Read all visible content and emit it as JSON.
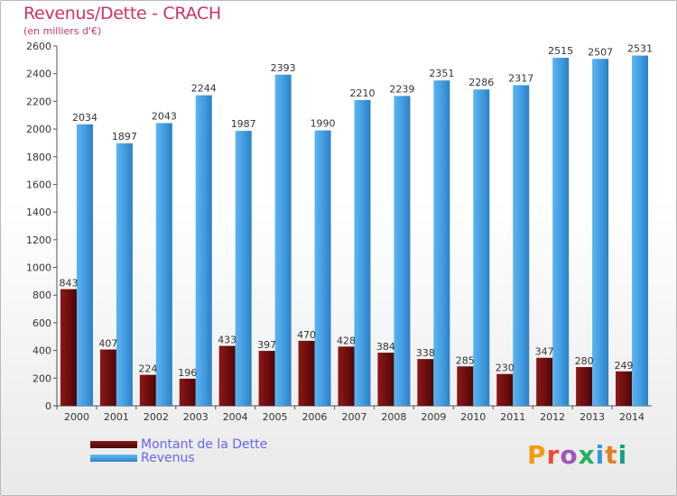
{
  "title": "Revenus/Dette - CRACH",
  "subtitle": "(en milliers d'€)",
  "logo": {
    "text": "Proxiti",
    "colors": [
      "#f39c12",
      "#e74c3c",
      "#9b59b6",
      "#27ae60",
      "#3498db",
      "#e67e22",
      "#16a085"
    ]
  },
  "colors": {
    "dette": "#7a1010",
    "revenus": "#4aa3e6",
    "title": "#cc3366",
    "legend_text": "#6666ee"
  },
  "legend": [
    {
      "label": "Montant de la Dette",
      "color": "#6b0f0f"
    },
    {
      "label": "Revenus",
      "color": "#4aa3e6"
    }
  ],
  "chart_data": {
    "type": "bar",
    "title": "Revenus/Dette - CRACH",
    "categories": [
      "2000",
      "2001",
      "2002",
      "2003",
      "2004",
      "2005",
      "2006",
      "2007",
      "2008",
      "2009",
      "2010",
      "2011",
      "2012",
      "2013",
      "2014"
    ],
    "series": [
      {
        "name": "Montant de la Dette",
        "values": [
          843,
          407,
          224,
          196,
          433,
          397,
          470,
          428,
          384,
          338,
          285,
          230,
          347,
          280,
          249
        ]
      },
      {
        "name": "Revenus",
        "values": [
          2034,
          1897,
          2043,
          2244,
          1987,
          2393,
          1990,
          2210,
          2239,
          2351,
          2286,
          2317,
          2515,
          2507,
          2531
        ]
      }
    ],
    "ylim": [
      0,
      2600
    ],
    "yticks": [
      0,
      200,
      400,
      600,
      800,
      1000,
      1200,
      1400,
      1600,
      1800,
      2000,
      2200,
      2400,
      2600
    ],
    "grid": false,
    "legend_position": "bottom-left"
  }
}
